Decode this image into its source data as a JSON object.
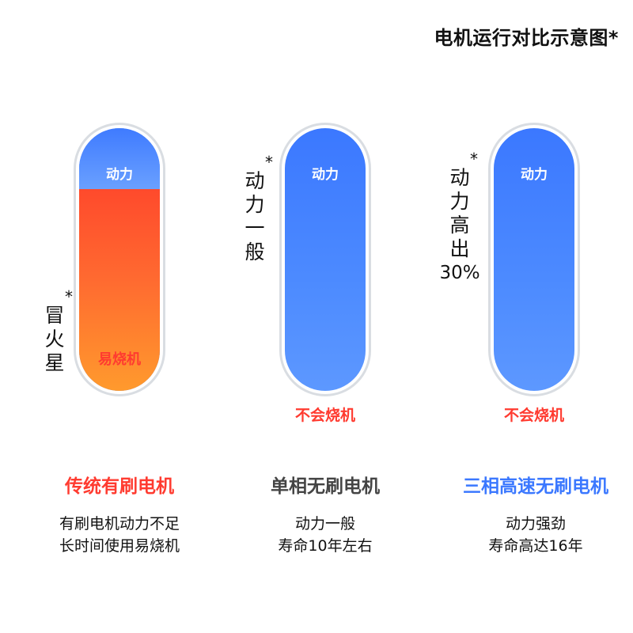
{
  "title": "电机运行对比示意图*",
  "columns": [
    {
      "side_label_lines": [
        "冒",
        "火",
        "星"
      ],
      "top_label": "动力",
      "inner_warning": "易烧机",
      "below_label": "",
      "heading": "传统有刷电机",
      "heading_color": "#ff3b30",
      "desc_lines": [
        "有刷电机动力不足",
        "长时间使用易烧机"
      ]
    },
    {
      "side_label_lines": [
        "动",
        "力",
        "一",
        "般"
      ],
      "top_label": "动力",
      "inner_warning": "",
      "below_label": "不会烧机",
      "heading": "单相无刷电机",
      "heading_color": "#444444",
      "desc_lines": [
        "动力一般",
        "寿命10年左右"
      ]
    },
    {
      "side_label_lines": [
        "动",
        "力",
        "高",
        "出",
        "30%"
      ],
      "top_label": "动力",
      "inner_warning": "",
      "below_label": "不会烧机",
      "heading": "三相高速无刷电机",
      "heading_color": "#3b78ff",
      "desc_lines": [
        "动力强劲",
        "寿命高达16年"
      ]
    }
  ],
  "star": "*"
}
